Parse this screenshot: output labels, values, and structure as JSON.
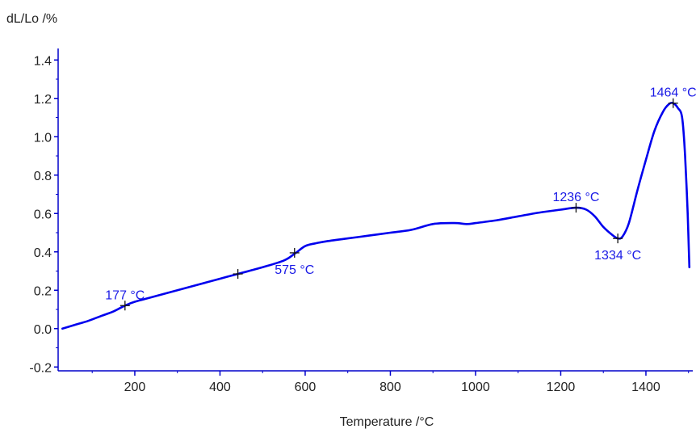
{
  "chart_data": {
    "type": "line",
    "title": "",
    "xlabel": "Temperature /°C",
    "ylabel": "dL/Lo /%",
    "xlim": [
      20,
      1510
    ],
    "ylim": [
      -0.22,
      1.46
    ],
    "x_ticks": [
      200,
      400,
      600,
      800,
      1000,
      1200,
      1400
    ],
    "x_tick_labels": [
      "200",
      "400",
      "600",
      "800",
      "1000",
      "1200",
      "1400"
    ],
    "y_ticks": [
      -0.2,
      0.0,
      0.2,
      0.4,
      0.6,
      0.8,
      1.0,
      1.2,
      1.4
    ],
    "y_tick_labels": [
      "-0.2",
      "0.0",
      "0.2",
      "0.4",
      "0.6",
      "0.8",
      "1.0",
      "1.2",
      "1.4"
    ],
    "grid": false,
    "legend": "none",
    "colors": {
      "series": "#0000ee",
      "annotation_text": "#1a1ae6",
      "axis": "#0000cc",
      "marker": "#111111"
    },
    "series": [
      {
        "points": [
          [
            30,
            0.0
          ],
          [
            60,
            0.02
          ],
          [
            90,
            0.04
          ],
          [
            120,
            0.065
          ],
          [
            150,
            0.09
          ],
          [
            177,
            0.12
          ],
          [
            200,
            0.14
          ],
          [
            250,
            0.17
          ],
          [
            300,
            0.2
          ],
          [
            350,
            0.23
          ],
          [
            400,
            0.26
          ],
          [
            442,
            0.285
          ],
          [
            500,
            0.32
          ],
          [
            550,
            0.355
          ],
          [
            575,
            0.39
          ],
          [
            600,
            0.43
          ],
          [
            625,
            0.445
          ],
          [
            650,
            0.455
          ],
          [
            700,
            0.47
          ],
          [
            750,
            0.485
          ],
          [
            800,
            0.5
          ],
          [
            850,
            0.515
          ],
          [
            900,
            0.545
          ],
          [
            950,
            0.55
          ],
          [
            980,
            0.545
          ],
          [
            1000,
            0.55
          ],
          [
            1050,
            0.565
          ],
          [
            1100,
            0.585
          ],
          [
            1150,
            0.605
          ],
          [
            1200,
            0.62
          ],
          [
            1236,
            0.63
          ],
          [
            1260,
            0.62
          ],
          [
            1280,
            0.585
          ],
          [
            1300,
            0.53
          ],
          [
            1320,
            0.49
          ],
          [
            1334,
            0.47
          ],
          [
            1345,
            0.48
          ],
          [
            1360,
            0.55
          ],
          [
            1380,
            0.72
          ],
          [
            1400,
            0.88
          ],
          [
            1420,
            1.03
          ],
          [
            1440,
            1.13
          ],
          [
            1454,
            1.17
          ],
          [
            1464,
            1.175
          ],
          [
            1475,
            1.15
          ],
          [
            1485,
            1.1
          ],
          [
            1492,
            0.9
          ],
          [
            1498,
            0.6
          ],
          [
            1502,
            0.32
          ]
        ]
      }
    ],
    "markers": [
      {
        "x": 177,
        "y": 0.12
      },
      {
        "x": 442,
        "y": 0.285
      },
      {
        "x": 575,
        "y": 0.395
      },
      {
        "x": 1236,
        "y": 0.63
      },
      {
        "x": 1334,
        "y": 0.47
      },
      {
        "x": 1464,
        "y": 1.175
      }
    ],
    "annotations": [
      {
        "text": "177 °C",
        "x": 177,
        "y": 0.12,
        "position": "above"
      },
      {
        "text": "575 °C",
        "x": 575,
        "y": 0.395,
        "position": "below"
      },
      {
        "text": "1236 °C",
        "x": 1236,
        "y": 0.63,
        "position": "above"
      },
      {
        "text": "1334 °C",
        "x": 1334,
        "y": 0.47,
        "position": "below"
      },
      {
        "text": "1464 °C",
        "x": 1464,
        "y": 1.175,
        "position": "above"
      }
    ]
  }
}
